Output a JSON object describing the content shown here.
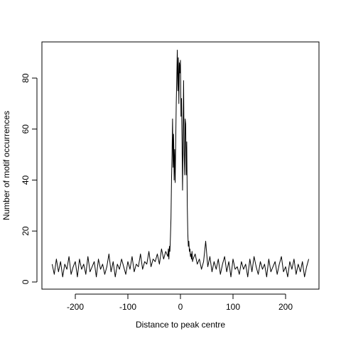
{
  "chart_data": {
    "type": "line",
    "xlabel": "Distance to peak centre",
    "ylabel": "Number of motif occurrences",
    "color": "#000000",
    "xlim": [
      -263.5,
      263.5
    ],
    "ylim": [
      -2.8,
      94.2
    ],
    "xticks": [
      -200,
      -100,
      0,
      100,
      200
    ],
    "yticks": [
      0,
      20,
      40,
      60,
      80
    ],
    "x": [
      -244,
      -240,
      -236,
      -232,
      -228,
      -224,
      -220,
      -216,
      -212,
      -208,
      -204,
      -200,
      -196,
      -192,
      -188,
      -184,
      -180,
      -176,
      -172,
      -168,
      -164,
      -160,
      -156,
      -152,
      -148,
      -144,
      -140,
      -136,
      -132,
      -128,
      -124,
      -120,
      -116,
      -112,
      -108,
      -104,
      -100,
      -96,
      -92,
      -88,
      -84,
      -80,
      -76,
      -72,
      -68,
      -64,
      -60,
      -56,
      -52,
      -48,
      -44,
      -40,
      -36,
      -32,
      -28,
      -24,
      -23,
      -22,
      -21,
      -20,
      -19,
      -18,
      -17,
      -16,
      -15,
      -14,
      -13,
      -12,
      -11,
      -10,
      -9,
      -8,
      -7,
      -6,
      -5,
      -4,
      -3,
      -2,
      -1,
      0,
      1,
      2,
      3,
      4,
      5,
      6,
      7,
      8,
      9,
      10,
      11,
      12,
      13,
      14,
      15,
      16,
      17,
      18,
      19,
      20,
      21,
      22,
      23,
      24,
      28,
      32,
      36,
      40,
      44,
      48,
      52,
      56,
      60,
      64,
      68,
      72,
      76,
      80,
      84,
      88,
      92,
      96,
      100,
      104,
      108,
      112,
      116,
      120,
      124,
      128,
      132,
      136,
      140,
      144,
      148,
      152,
      156,
      160,
      164,
      168,
      172,
      176,
      180,
      184,
      188,
      192,
      196,
      200,
      204,
      208,
      212,
      216,
      220,
      224,
      228,
      232,
      236,
      240,
      244
    ],
    "values": [
      7,
      3,
      9,
      4,
      8,
      2,
      7,
      5,
      10,
      3,
      6,
      8,
      2,
      9,
      5,
      7,
      3,
      10,
      4,
      6,
      8,
      2,
      9,
      5,
      7,
      3,
      6,
      11,
      4,
      8,
      2,
      7,
      5,
      9,
      6,
      3,
      8,
      5,
      10,
      4,
      7,
      6,
      11,
      5,
      8,
      7,
      12,
      6,
      9,
      8,
      11,
      7,
      13,
      9,
      12,
      10,
      13,
      9,
      14,
      12,
      18,
      25,
      40,
      50,
      64,
      45,
      58,
      40,
      52,
      39,
      55,
      70,
      80,
      91,
      75,
      88,
      70,
      86,
      82,
      87,
      65,
      72,
      55,
      36,
      60,
      79,
      50,
      42,
      64,
      62,
      42,
      55,
      30,
      19,
      14,
      16,
      12,
      13,
      10,
      11,
      9,
      12,
      8,
      9,
      11,
      7,
      9,
      5,
      8,
      16,
      6,
      10,
      4,
      8,
      5,
      9,
      3,
      7,
      10,
      4,
      8,
      2,
      9,
      5,
      6,
      3,
      8,
      5,
      7,
      2,
      9,
      4,
      10,
      6,
      3,
      8,
      5,
      7,
      2,
      9,
      4,
      6,
      8,
      3,
      7,
      10,
      4,
      6,
      2,
      8,
      5,
      9,
      3,
      7,
      4,
      8,
      2,
      6,
      9
    ]
  }
}
